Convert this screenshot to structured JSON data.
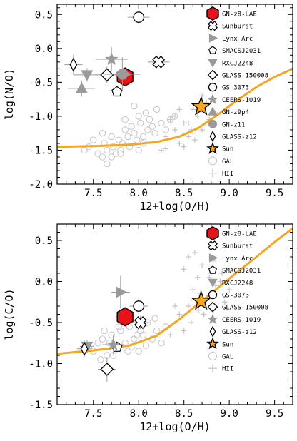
{
  "chart_data": [
    {
      "type": "scatter",
      "xlabel": "12+log(O/H)",
      "ylabel": "log(N/O)",
      "xlim": [
        7.1,
        9.7
      ],
      "ylim": [
        -2.0,
        0.65
      ],
      "xticks": [
        "7.5",
        "8.0",
        "8.5",
        "9.0",
        "9.5"
      ],
      "yticks": [
        "0.5",
        "0.0",
        "-0.5",
        "-1.0",
        "-1.5",
        "-2.0"
      ],
      "ytick_values": [
        0.5,
        0.0,
        -0.5,
        -1.0,
        -1.5,
        -2.0
      ],
      "xtick_values": [
        7.5,
        8.0,
        8.5,
        9.0,
        9.5
      ],
      "legend": [
        "GN-z8-LAE",
        "Sunburst",
        "Lynx Arc",
        "SMACSJ2031",
        "RXCJ2248",
        "GLASS-150008",
        "GS-3073",
        "CEERS-1019",
        "GN-z9p4",
        "GN-z11",
        "GLASS-z12",
        "Sun",
        "GAL",
        "HII"
      ],
      "legend_placement": "right",
      "curve": {
        "x": [
          7.1,
          7.5,
          7.9,
          8.2,
          8.45,
          8.65,
          8.85,
          9.05,
          9.3,
          9.5,
          9.7
        ],
        "y": [
          -1.45,
          -1.44,
          -1.42,
          -1.38,
          -1.3,
          -1.18,
          -1.0,
          -0.8,
          -0.57,
          -0.42,
          -0.3
        ]
      },
      "series": [
        {
          "name": "GN-z8-LAE",
          "marker": "hexagon-red",
          "x": 7.85,
          "y": -0.42,
          "xerr": 0.1,
          "yerr": 0.1
        },
        {
          "name": "Sunburst",
          "marker": "cross-x",
          "x": 8.22,
          "y": -0.2,
          "xerr": 0.12,
          "yerr": 0.05
        },
        {
          "name": "Lynx Arc",
          "marker": "triangle-right",
          "x": 7.85,
          "y": -0.38,
          "xerr": 0.08,
          "yerr": 0.08
        },
        {
          "name": "SMACSJ2031",
          "marker": "pentagon",
          "x": 7.76,
          "y": -0.64,
          "xerr": 0.05,
          "yerr": 0.07
        },
        {
          "name": "RXCJ2248",
          "marker": "triangle-down",
          "x": 7.43,
          "y": -0.39,
          "xerr": 0.15,
          "yerr": 0.1
        },
        {
          "name": "GLASS-150008",
          "marker": "diamond",
          "x": 7.65,
          "y": -0.39,
          "xerr": 0.13,
          "yerr": 0.12
        },
        {
          "name": "GS-3073",
          "marker": "circle",
          "x": 8.0,
          "y": 0.46,
          "xerr": 0.12,
          "yerr": 0.1
        },
        {
          "name": "CEERS-1019",
          "marker": "star-grey",
          "x": 7.7,
          "y": -0.16,
          "xerr": 0.18,
          "yerr": 0.18
        },
        {
          "name": "GN-z9p4",
          "marker": "triangle-up",
          "x": 7.37,
          "y": -0.59,
          "xerr": 0.15,
          "yerr": 0.12
        },
        {
          "name": "GN-z11",
          "marker": "circle-filled",
          "x": 7.82,
          "y": -0.38,
          "xerr": 0.2,
          "yerr": 0.25
        },
        {
          "name": "GLASS-z12",
          "marker": "thin-diamond",
          "x": 7.28,
          "y": -0.24,
          "xerr": 0.1,
          "yerr": 0.15
        },
        {
          "name": "Sun",
          "marker": "star-orange",
          "x": 8.69,
          "y": -0.86
        }
      ],
      "gal": {
        "x": [
          7.4,
          7.45,
          7.55,
          7.6,
          7.62,
          7.65,
          7.7,
          7.72,
          7.75,
          7.78,
          7.8,
          7.82,
          7.85,
          7.88,
          7.9,
          7.92,
          7.95,
          7.98,
          8.0,
          8.02,
          8.05,
          8.08,
          8.1,
          8.12,
          8.15,
          8.18,
          8.2,
          8.25,
          8.3,
          8.35,
          8.4,
          7.6,
          7.7,
          7.85,
          7.95,
          8.05,
          7.5,
          7.65,
          7.8,
          8.0
        ],
        "y": [
          -1.5,
          -1.45,
          -1.55,
          -1.6,
          -1.4,
          -1.5,
          -1.3,
          -1.45,
          -1.55,
          -1.35,
          -1.5,
          -1.4,
          -1.2,
          -1.3,
          -1.45,
          -1.15,
          -1.25,
          -1.35,
          -1.0,
          -1.1,
          -1.3,
          -0.95,
          -1.2,
          -1.05,
          -1.15,
          -1.25,
          -0.9,
          -1.1,
          -1.2,
          -1.05,
          -1.0,
          -1.25,
          -1.6,
          -1.05,
          -0.85,
          -1.4,
          -1.35,
          -1.7,
          -1.55,
          -1.5
        ]
      },
      "hii": {
        "x": [
          8.25,
          8.3,
          8.4,
          8.45,
          8.5,
          8.55,
          8.6,
          8.65,
          8.7,
          8.75,
          8.8,
          8.85,
          8.5,
          8.35,
          8.6,
          8.7,
          8.45,
          8.55,
          8.62,
          8.78,
          8.3,
          8.4,
          8.72,
          8.58
        ],
        "y": [
          -1.5,
          -1.3,
          -1.2,
          -1.4,
          -1.1,
          -1.3,
          -0.9,
          -1.0,
          -1.2,
          -0.8,
          -0.75,
          -0.95,
          -1.45,
          -1.05,
          -1.25,
          -0.7,
          -0.9,
          -1.1,
          -1.35,
          -1.05,
          -1.48,
          -1.0,
          -0.85,
          -1.2
        ]
      }
    },
    {
      "type": "scatter",
      "xlabel": "12+log(O/H)",
      "ylabel": "log(C/O)",
      "xlim": [
        7.1,
        9.7
      ],
      "ylim": [
        -1.5,
        0.7
      ],
      "xticks": [
        "7.5",
        "8.0",
        "8.5",
        "9.0",
        "9.5"
      ],
      "yticks": [
        "0.5",
        "0.0",
        "-0.5",
        "-1.0",
        "-1.5"
      ],
      "ytick_values": [
        0.5,
        0.0,
        -0.5,
        -1.0,
        -1.5
      ],
      "xtick_values": [
        7.5,
        8.0,
        8.5,
        9.0,
        9.5
      ],
      "legend": [
        "GN-z8-LAE",
        "Sunburst",
        "Lynx Arc",
        "SMACSJ2031",
        "RXCJ2248",
        "GS-3073",
        "GLASS-150008",
        "CEERS-1019",
        "GLASS-z12",
        "Sun",
        "GAL",
        "HII"
      ],
      "legend_placement": "right",
      "curve": {
        "x": [
          7.1,
          7.5,
          7.9,
          8.2,
          8.45,
          8.65,
          8.85,
          9.05,
          9.3,
          9.5,
          9.7
        ],
        "y": [
          -0.88,
          -0.84,
          -0.78,
          -0.66,
          -0.46,
          -0.28,
          -0.1,
          0.08,
          0.3,
          0.48,
          0.65
        ]
      },
      "series": [
        {
          "name": "GN-z8-LAE",
          "marker": "hexagon-red",
          "x": 7.85,
          "y": -0.43,
          "xerr": 0.1,
          "yerr": 0.12
        },
        {
          "name": "Sunburst",
          "marker": "cross-x",
          "x": 8.02,
          "y": -0.5,
          "xerr": 0.1,
          "yerr": 0.08
        },
        {
          "name": "Lynx Arc",
          "marker": "triangle-right",
          "x": 7.8,
          "y": -0.13,
          "xerr": 0.1,
          "yerr": 0.2
        },
        {
          "name": "SMACSJ2031",
          "marker": "pentagon",
          "x": 7.76,
          "y": -0.8,
          "xerr": 0.05,
          "yerr": 0.06
        },
        {
          "name": "RXCJ2248",
          "marker": "triangle-down",
          "x": 7.43,
          "y": -0.79,
          "xerr": 0.08,
          "yerr": 0.08
        },
        {
          "name": "GS-3073",
          "marker": "circle",
          "x": 8.0,
          "y": -0.3,
          "xerr": 0.1,
          "yerr": 0.1
        },
        {
          "name": "GLASS-150008",
          "marker": "diamond",
          "x": 7.65,
          "y": -1.07,
          "xerr": 0.1,
          "yerr": 0.15
        },
        {
          "name": "CEERS-1019",
          "marker": "star-grey",
          "x": 7.72,
          "y": -0.77,
          "xerr": 0.12,
          "yerr": 0.12
        },
        {
          "name": "GLASS-z12",
          "marker": "thin-diamond",
          "x": 7.4,
          "y": -0.82,
          "xerr": 0.08,
          "yerr": 0.1
        },
        {
          "name": "Sun",
          "marker": "star-orange",
          "x": 8.69,
          "y": -0.24
        }
      ],
      "gal": {
        "x": [
          7.45,
          7.5,
          7.55,
          7.6,
          7.65,
          7.7,
          7.75,
          7.8,
          7.85,
          7.9,
          7.95,
          8.0,
          8.05,
          8.1,
          8.15,
          8.2,
          8.25,
          8.3,
          7.62,
          7.72,
          7.82,
          7.92,
          8.02,
          7.58,
          7.68,
          7.78,
          7.88,
          7.98,
          8.08,
          8.18
        ],
        "y": [
          -0.8,
          -0.85,
          -0.75,
          -0.7,
          -0.9,
          -0.65,
          -0.8,
          -0.6,
          -0.75,
          -0.55,
          -0.7,
          -0.85,
          -0.65,
          -0.5,
          -0.7,
          -0.6,
          -0.75,
          -0.55,
          -0.6,
          -0.9,
          -0.5,
          -0.8,
          -0.6,
          -0.95,
          -0.75,
          -0.55,
          -0.85,
          -0.65,
          -0.78,
          -0.45
        ]
      },
      "hii": {
        "x": [
          8.35,
          8.45,
          8.5,
          8.55,
          8.6,
          8.65,
          8.7,
          8.75,
          8.8,
          8.85,
          8.9,
          8.95,
          9.0,
          8.5,
          8.62,
          8.72,
          8.82,
          8.58,
          8.68,
          8.4,
          8.92,
          8.78,
          8.55,
          8.66
        ],
        "y": [
          -0.65,
          -0.4,
          -0.6,
          -0.3,
          -0.1,
          0.05,
          0.2,
          -0.2,
          0.1,
          -0.05,
          0.0,
          -0.25,
          -0.1,
          0.15,
          0.35,
          -0.4,
          0.25,
          -0.5,
          -0.15,
          -0.3,
          0.1,
          0.05,
          0.3,
          -0.35
        ]
      }
    }
  ],
  "colors": {
    "curve": "#f5a623",
    "gn_z8_lae": "#e8131a",
    "grey": "#9a9a9a",
    "light_grey": "#c4c4c4",
    "sun": "#f5a623"
  }
}
